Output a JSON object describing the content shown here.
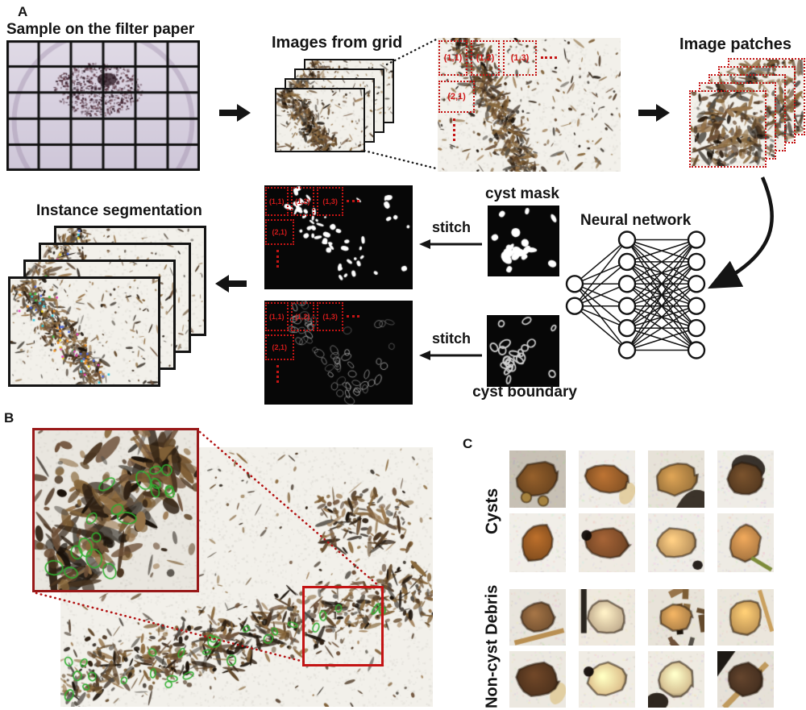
{
  "figure": {
    "panel_a": {
      "label": "A",
      "sample_title": "Sample on the filter paper",
      "images_from_grid_title": "Images from grid",
      "image_patches_title": "Image patches",
      "instance_segmentation_title": "Instance segmentation",
      "stitch_top": "stitch",
      "stitch_bottom": "stitch",
      "cyst_mask_label": "cyst mask",
      "neural_network_label": "Neural network",
      "cyst_boundary_label": "cyst boundary",
      "tile_labels": [
        "(1,1)",
        "(1,2)",
        "(1,3)",
        "(2,1)"
      ],
      "nn_layers": [
        2,
        6,
        6
      ]
    },
    "panel_b": {
      "label": "B"
    },
    "panel_c": {
      "label": "C",
      "cysts_label": "Cysts",
      "non_cyst_label": "Non-cyst Debris",
      "cyst_patches": [
        {
          "desc": "large brown lemon-shaped cyst with two round buds",
          "bg": "#c7c0b4",
          "color": "#6e4720",
          "rx": 0.37,
          "ry": 0.3,
          "rot": -0.35,
          "accent": "buds"
        },
        {
          "desc": "brown oval cyst lying horizontally",
          "bg": "#efece6",
          "color": "#8a5526",
          "rx": 0.38,
          "ry": 0.24,
          "rot": 0.15,
          "accent": "flake-right"
        },
        {
          "desc": "tan oval cyst with dark debris at lower right",
          "bg": "#e7e2d8",
          "color": "#a3793f",
          "rx": 0.36,
          "ry": 0.27,
          "rot": -0.2,
          "accent": "dark-corner-br"
        },
        {
          "desc": "dark rounded cyst shaded black on top",
          "bg": "#efece6",
          "color": "#5a3d22",
          "rx": 0.31,
          "ry": 0.29,
          "rot": 0.0,
          "accent": "dark-top"
        },
        {
          "desc": "brown teardrop-shaped cyst",
          "bg": "#f1eee8",
          "color": "#8a5220",
          "rx": 0.26,
          "ry": 0.33,
          "rot": 0.3,
          "accent": "none"
        },
        {
          "desc": "lumpy brown cyst with dark spot at left",
          "bg": "#efeae2",
          "color": "#7a4a28",
          "rx": 0.38,
          "ry": 0.25,
          "rot": 0.1,
          "accent": "spot-left"
        },
        {
          "desc": "pale tan oval cyst",
          "bg": "#efece6",
          "color": "#c29a62",
          "rx": 0.34,
          "ry": 0.25,
          "rot": -0.15,
          "accent": "spot-br"
        },
        {
          "desc": "light brown angular cyst with stalk",
          "bg": "#eeebe4",
          "color": "#b07c44",
          "rx": 0.26,
          "ry": 0.32,
          "rot": 0.2,
          "accent": "stalk"
        }
      ],
      "debris_patches": [
        {
          "desc": "round brown debris blob over a tan stick",
          "bg": "#e9e5dd",
          "color": "#7a5634",
          "rx": 0.3,
          "ry": 0.26,
          "rot": 0.0,
          "accent": "stick-below"
        },
        {
          "desc": "pale translucent debris with dark bar at left",
          "bg": "#efe9de",
          "color": "#c7b394",
          "rx": 0.34,
          "ry": 0.28,
          "rot": 0.3,
          "accent": "bar-left"
        },
        {
          "desc": "tan round blob among dark debris",
          "bg": "#e8e3d9",
          "color": "#b3854a",
          "rx": 0.28,
          "ry": 0.24,
          "rot": 0.0,
          "accent": "scatter"
        },
        {
          "desc": "tan potato-shaped blob with diagonal stick",
          "bg": "#ebe6dc",
          "color": "#c59a58",
          "rx": 0.28,
          "ry": 0.32,
          "rot": 0.5,
          "accent": "stick-diag"
        },
        {
          "desc": "dark brown rock-like chunk with cream flake",
          "bg": "#ece8e0",
          "color": "#53351e",
          "rx": 0.36,
          "ry": 0.3,
          "rot": 0.1,
          "accent": "flake-right"
        },
        {
          "desc": "pale yellow translucent blob with dark spot",
          "bg": "#f0ece4",
          "color": "#e0c490",
          "rx": 0.34,
          "ry": 0.28,
          "rot": -0.2,
          "accent": "spot-left"
        },
        {
          "desc": "cream flake with dark blob at lower left",
          "bg": "#efebe2",
          "color": "#d9c496",
          "rx": 0.3,
          "ry": 0.3,
          "rot": 0.4,
          "accent": "dark-bl"
        },
        {
          "desc": "dark twisted debris crossed by a tan stick",
          "bg": "#e6e1d8",
          "color": "#4a3322",
          "rx": 0.3,
          "ry": 0.3,
          "rot": -0.5,
          "accent": "stick-cross"
        }
      ]
    },
    "colors": {
      "annotation_red": "#c41414",
      "inset_border_red": "#991919",
      "detection_green": "#2fae2f",
      "mask_background": "#070707"
    }
  }
}
